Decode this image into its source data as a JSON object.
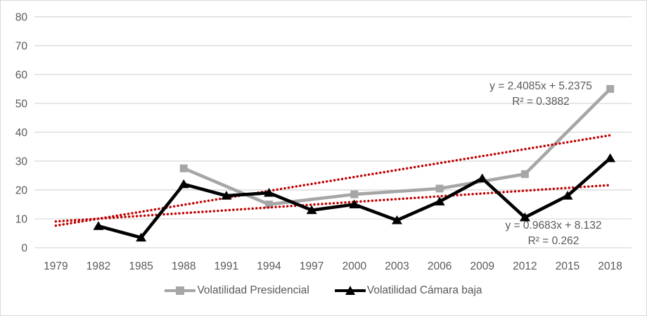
{
  "chart_data": {
    "type": "line",
    "categories": [
      "1979",
      "1982",
      "1985",
      "1988",
      "1991",
      "1994",
      "1997",
      "2000",
      "2003",
      "2006",
      "2009",
      "2012",
      "2015",
      "2018"
    ],
    "series": [
      {
        "name": "Volatilidad Presidencial",
        "color": "#a6a6a6",
        "marker": "square",
        "values": [
          null,
          null,
          null,
          27.5,
          null,
          15,
          null,
          18.5,
          null,
          20.5,
          null,
          25.5,
          null,
          55
        ]
      },
      {
        "name": "Volatilidad Cámara baja",
        "color": "#000000",
        "marker": "triangle",
        "values": [
          null,
          7.5,
          3.5,
          22,
          18,
          19,
          13,
          15,
          9.5,
          16,
          24,
          10.5,
          18,
          31
        ]
      }
    ],
    "trendlines": [
      {
        "series": "Volatilidad Presidencial",
        "equation": "y = 2.4085x + 5.2375",
        "r2": "R² = 0.3882",
        "slope": 2.4085,
        "intercept": 5.2375,
        "color": "#c00000",
        "style": "dotted"
      },
      {
        "series": "Volatilidad Cámara baja",
        "equation": "y = 0.9683x + 8.132",
        "r2": "R² = 0.262",
        "slope": 0.9683,
        "intercept": 8.132,
        "color": "#c00000",
        "style": "dotted"
      }
    ],
    "title": "",
    "xlabel": "",
    "ylabel": "",
    "ylim": [
      0,
      80
    ],
    "yticks": [
      0,
      10,
      20,
      30,
      40,
      50,
      60,
      70,
      80
    ],
    "grid": true,
    "gridline_color": "#d9d9d9",
    "tick_label_color": "#595959",
    "legend_position": "bottom"
  },
  "legend": {
    "items": [
      {
        "label": "Volatilidad Presidencial"
      },
      {
        "label": "Volatilidad Cámara baja"
      }
    ]
  }
}
